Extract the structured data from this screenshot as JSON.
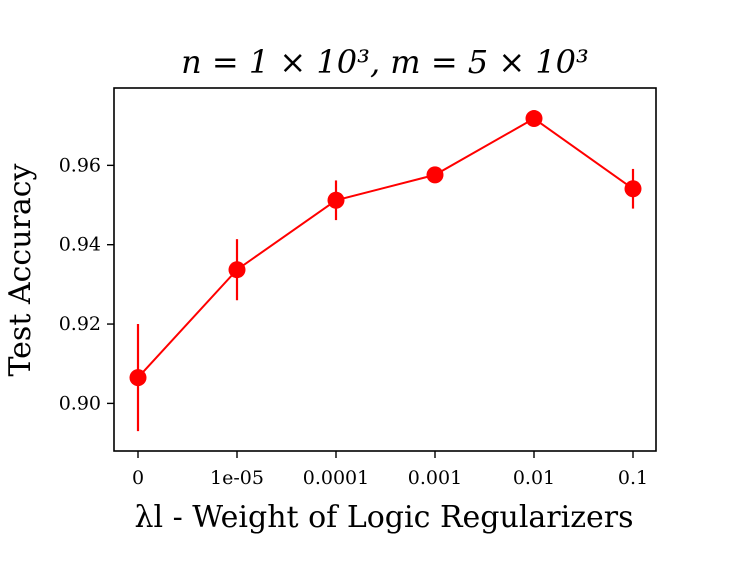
{
  "chart_data": {
    "type": "line",
    "title": "n = 1 × 10³, m = 5 × 10³",
    "xlabel": "λl - Weight of Logic Regularizers",
    "ylabel": "Test Accuracy",
    "categories": [
      "0",
      "1e-05",
      "0.0001",
      "0.001",
      "0.01",
      "0.1"
    ],
    "series": [
      {
        "color": "#ff0000",
        "values": [
          0.9065,
          0.9337,
          0.9512,
          0.9576,
          0.9718,
          0.9541
        ],
        "error_low": [
          0.893,
          0.926,
          0.9462,
          0.9556,
          0.9703,
          0.9491
        ],
        "error_high": [
          0.92,
          0.9414,
          0.9562,
          0.9596,
          0.9733,
          0.9591
        ]
      }
    ],
    "yticks": [
      {
        "value": 0.9,
        "label": "0.90"
      },
      {
        "value": 0.92,
        "label": "0.92"
      },
      {
        "value": 0.94,
        "label": "0.94"
      },
      {
        "value": 0.96,
        "label": "0.96"
      }
    ],
    "ylim": [
      0.888,
      0.9795
    ],
    "grid": false,
    "legend": false
  }
}
